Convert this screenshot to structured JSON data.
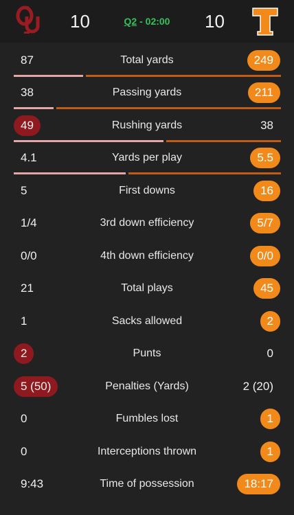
{
  "header": {
    "home_score": "10",
    "away_score": "10",
    "quarter": "Q2",
    "clock_sep": " - ",
    "time": "02:00",
    "home_logo_icon": "oklahoma-ou-logo",
    "away_logo_icon": "tennessee-t-logo",
    "colors": {
      "home": "#8e1a1f",
      "away": "#f28a1b",
      "clock": "#35c25b"
    }
  },
  "stats": [
    {
      "label": "Total yards",
      "home": "87",
      "away": "249",
      "leader": "away",
      "bar": 0.26
    },
    {
      "label": "Passing yards",
      "home": "38",
      "away": "211",
      "leader": "away",
      "bar": 0.15
    },
    {
      "label": "Rushing yards",
      "home": "49",
      "away": "38",
      "leader": "home",
      "bar": 0.56
    },
    {
      "label": "Yards per play",
      "home": "4.1",
      "away": "5.5",
      "leader": "away",
      "bar": 0.42
    },
    {
      "label": "First downs",
      "home": "5",
      "away": "16",
      "leader": "away"
    },
    {
      "label": "3rd down efficiency",
      "home": "1/4",
      "away": "5/7",
      "leader": "away"
    },
    {
      "label": "4th down efficiency",
      "home": "0/0",
      "away": "0/0",
      "leader": "away"
    },
    {
      "label": "Total plays",
      "home": "21",
      "away": "45",
      "leader": "away"
    },
    {
      "label": "Sacks allowed",
      "home": "1",
      "away": "2",
      "leader": "away"
    },
    {
      "label": "Punts",
      "home": "2",
      "away": "0",
      "leader": "home"
    },
    {
      "label": "Penalties (Yards)",
      "home": "5 (50)",
      "away": "2 (20)",
      "leader": "home"
    },
    {
      "label": "Fumbles lost",
      "home": "0",
      "away": "1",
      "leader": "away"
    },
    {
      "label": "Interceptions thrown",
      "home": "0",
      "away": "1",
      "leader": "away"
    },
    {
      "label": "Time of possession",
      "home": "9:43",
      "away": "18:17",
      "leader": "away"
    }
  ]
}
